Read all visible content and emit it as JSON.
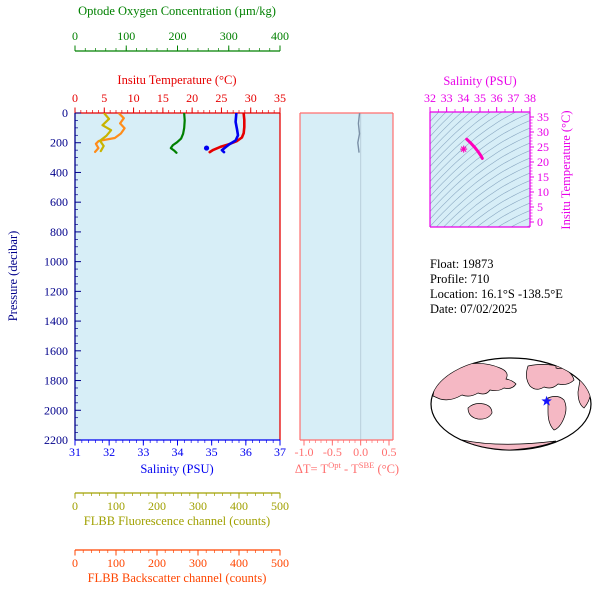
{
  "colors": {
    "figure_bg": "#ffffff",
    "plot_bg": "#d7eef7",
    "pressure_axis": "#00008b",
    "contour_line": "#8aa8c2",
    "zero_gridline": "#b9cfdb",
    "map_land": "#f5b8c4",
    "map_ocean": "#ffffff",
    "map_outline": "#000000",
    "map_marker_color": "#1414ff",
    "info_text": "#000000"
  },
  "info": {
    "lines": [
      "Float:  19873",
      "Profile:  710",
      "Location:  16.1°S  -138.5°E",
      "Date:  07/02/2025"
    ]
  },
  "chart_data": [
    {
      "type": "line",
      "name": "pressure-profile-plot",
      "ylabel": "Pressure (decibar)",
      "ylim": [
        0,
        2200
      ],
      "y_inverted": true,
      "yticks": [
        0,
        200,
        400,
        600,
        800,
        1000,
        1200,
        1400,
        1600,
        1800,
        2000,
        2200
      ],
      "axes": {
        "oxygen": {
          "label": "Optode Oxygen Concentration (µm/kg)",
          "color": "#008000",
          "range": [
            0,
            400
          ],
          "ticks": [
            0,
            100,
            200,
            300,
            400
          ]
        },
        "temperature": {
          "label": "Insitu Temperature (°C)",
          "color": "#e60000",
          "range": [
            0,
            35
          ],
          "ticks": [
            0,
            5,
            10,
            15,
            20,
            25,
            30,
            35
          ]
        },
        "salinity": {
          "label": "Salinity (PSU)",
          "color": "#0000f0",
          "range": [
            31,
            37
          ],
          "ticks": [
            31,
            32,
            33,
            34,
            35,
            36,
            37
          ]
        },
        "fluorescence": {
          "label": "FLBB Fluorescence channel (counts)",
          "color": "#a0a000",
          "range": [
            0,
            500
          ],
          "ticks": [
            0,
            100,
            200,
            300,
            400,
            500
          ]
        },
        "backscatter": {
          "label": "FLBB Backscatter channel (counts)",
          "color": "#ff4500",
          "range": [
            0,
            500
          ],
          "ticks": [
            0,
            100,
            200,
            300,
            400,
            500
          ]
        }
      },
      "series": [
        {
          "name": "flbb-backscatter",
          "axis": "backscatter",
          "color": "#ff8c1a",
          "width": 2.2,
          "points": [
            [
              108,
              5
            ],
            [
              119,
              35
            ],
            [
              110,
              70
            ],
            [
              121,
              102
            ],
            [
              112,
              138
            ],
            [
              97,
              168
            ],
            [
              58,
              188
            ],
            [
              51,
              207
            ],
            [
              57,
              236
            ],
            [
              49,
              262
            ]
          ]
        },
        {
          "name": "flbb-fluorescence",
          "axis": "fluorescence",
          "color": "#c8b400",
          "width": 2.2,
          "points": [
            [
              72,
              5
            ],
            [
              83,
              40
            ],
            [
              67,
              82
            ],
            [
              88,
              116
            ],
            [
              77,
              152
            ],
            [
              61,
              187
            ],
            [
              70,
              222
            ],
            [
              63,
              256
            ]
          ]
        },
        {
          "name": "optode-oxygen",
          "axis": "oxygen",
          "color": "#008000",
          "width": 2.2,
          "points": [
            [
              213,
              5
            ],
            [
              214,
              50
            ],
            [
              213,
              100
            ],
            [
              211,
              140
            ],
            [
              207,
              172
            ],
            [
              199,
              197
            ],
            [
              191,
              216
            ],
            [
              187,
              236
            ],
            [
              194,
              254
            ],
            [
              198,
              268
            ]
          ]
        },
        {
          "name": "insitu-temperature",
          "axis": "temperature",
          "color": "#e60000",
          "width": 2.6,
          "points": [
            [
              28.8,
              5
            ],
            [
              28.9,
              45
            ],
            [
              28.9,
              95
            ],
            [
              28.8,
              135
            ],
            [
              28.5,
              165
            ],
            [
              27.6,
              190
            ],
            [
              26.3,
              210
            ],
            [
              24.8,
              228
            ],
            [
              23.6,
              248
            ],
            [
              23.0,
              263
            ]
          ]
        },
        {
          "name": "salinity",
          "axis": "salinity",
          "color": "#0000f0",
          "width": 2.6,
          "points": [
            [
              35.72,
              5
            ],
            [
              35.7,
              60
            ],
            [
              35.74,
              110
            ],
            [
              35.77,
              150
            ],
            [
              35.7,
              185
            ],
            [
              35.52,
              210
            ],
            [
              35.42,
              228
            ],
            [
              35.3,
              250
            ],
            [
              35.36,
              263
            ]
          ],
          "marker_point": [
            34.85,
            236
          ]
        }
      ]
    },
    {
      "type": "line",
      "name": "delta-t-plot",
      "xlabel_parts": {
        "pre": "ΔT= T",
        "sup1": "Opt",
        "mid": " - T",
        "sup2": "SBE",
        "post": " (°C)"
      },
      "color": "#ff6e6e",
      "xlim": [
        -1.0,
        0.5
      ],
      "xtick_values": [
        -1.0,
        -0.5,
        0.0,
        0.5
      ],
      "xtick_labels": [
        "-1.0",
        "-0.5",
        "0.0",
        "0.5"
      ],
      "series": [
        {
          "name": "delta-t",
          "color": "#7a8fa6",
          "width": 1.4,
          "points": [
            [
              -0.02,
              5
            ],
            [
              -0.04,
              70
            ],
            [
              -0.02,
              140
            ],
            [
              -0.05,
              200
            ],
            [
              -0.03,
              263
            ]
          ]
        }
      ]
    },
    {
      "type": "line",
      "name": "ts-diagram",
      "top_label": "Salinity (PSU)",
      "right_label": "Insitu Temperature (°C)",
      "color": "#e800e8",
      "xlim": [
        32,
        38
      ],
      "xticks": [
        32,
        33,
        34,
        35,
        36,
        37,
        38
      ],
      "ylim": [
        0,
        35
      ],
      "yticks": [
        0,
        5,
        10,
        15,
        20,
        25,
        30,
        35
      ],
      "series": [
        {
          "name": "ts-profile",
          "color": "#ff00bb",
          "width": 3,
          "points": [
            [
              34.2,
              27.6
            ],
            [
              34.45,
              26.3
            ],
            [
              34.68,
              24.9
            ],
            [
              34.88,
              23.5
            ],
            [
              35.03,
              22.3
            ],
            [
              35.14,
              21.2
            ]
          ]
        }
      ],
      "marker": {
        "symbol": "asterisk",
        "color": "#ff00bb",
        "s": 34.02,
        "t": 24.3
      }
    },
    {
      "type": "map",
      "name": "world-map",
      "marker": {
        "symbol": "star",
        "color": "#1414ff",
        "fx": 0.72,
        "fy": 0.47
      }
    }
  ]
}
